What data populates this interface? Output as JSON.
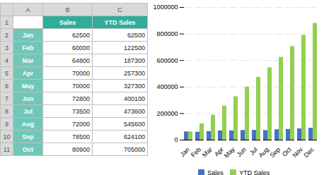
{
  "chart_data": [
    {
      "type": "table",
      "column_letters": [
        "A",
        "B",
        "C"
      ],
      "row_numbers": [
        1,
        2,
        3,
        4,
        5,
        6,
        7,
        8,
        9,
        10,
        11
      ],
      "categories": [
        "Jan",
        "Feb",
        "Mar",
        "Apr",
        "May",
        "Jun",
        "Jul",
        "Aug",
        "Sep",
        "Oct"
      ],
      "series": [
        {
          "name": "Sales",
          "values": [
            62500,
            60000,
            64800,
            70000,
            70000,
            72800,
            73500,
            72000,
            78500,
            80900
          ]
        },
        {
          "name": "YTD Sales",
          "values": [
            62500,
            122500,
            187300,
            257300,
            327300,
            400100,
            473600,
            545600,
            624100,
            705000
          ]
        }
      ]
    },
    {
      "type": "bar",
      "categories": [
        "Jan",
        "Feb",
        "Mar",
        "Apr",
        "May",
        "Jun",
        "Jul",
        "Aug",
        "Sep",
        "Oct",
        "Nov",
        "Dec"
      ],
      "series": [
        {
          "name": "Sales",
          "color": "#4472C4",
          "values": [
            62500,
            60000,
            64800,
            70000,
            70000,
            72800,
            73500,
            72000,
            78500,
            80900,
            85000,
            90000
          ]
        },
        {
          "name": "YTD Sales",
          "color": "#92D050",
          "values": [
            62500,
            122500,
            187300,
            257300,
            327300,
            400100,
            473600,
            545600,
            624100,
            705000,
            790000,
            880000
          ]
        }
      ],
      "ylim": [
        0,
        1000000
      ],
      "yticks": [
        0,
        200000,
        400000,
        600000,
        800000,
        1000000
      ],
      "grid": true,
      "legend": "bottom"
    }
  ]
}
